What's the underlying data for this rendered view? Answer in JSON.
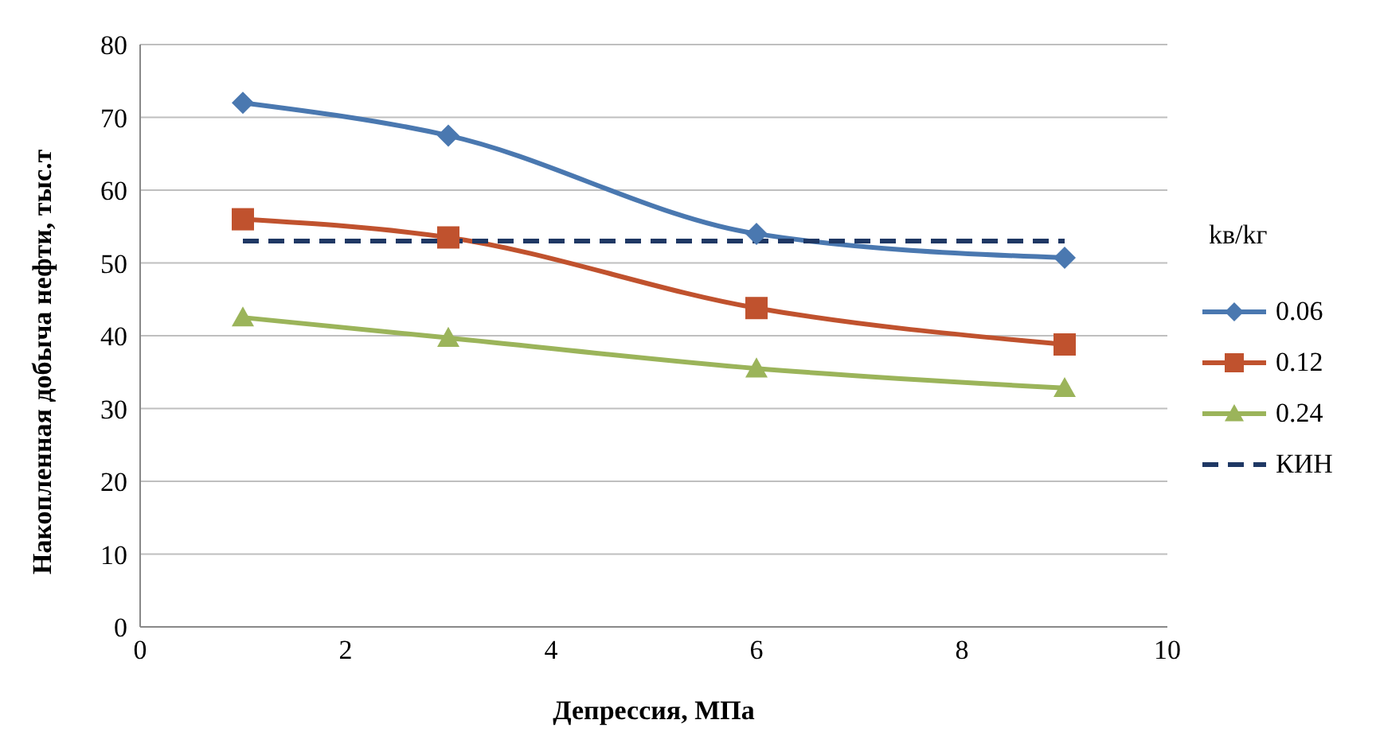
{
  "chart_data": {
    "type": "line",
    "xlabel": "Депрессия, МПа",
    "ylabel": "Накопленная добыча нефти, тыс.т",
    "legend_title": "kв/kг",
    "x": [
      1,
      3,
      6,
      9
    ],
    "series": [
      {
        "name": "0.06",
        "color": "#4a78b0",
        "values": [
          72,
          67.5,
          54,
          50.7
        ],
        "marker": "diamond"
      },
      {
        "name": "0.12",
        "color": "#c0522e",
        "values": [
          56,
          53.5,
          43.8,
          38.8
        ],
        "marker": "square"
      },
      {
        "name": "0.24",
        "color": "#9bb45a",
        "values": [
          42.5,
          39.7,
          35.5,
          32.8
        ],
        "marker": "triangle"
      },
      {
        "name": "КИН",
        "color": "#1f3864",
        "values": [
          53,
          53,
          53,
          53
        ],
        "marker": "none",
        "line_style": "dashed"
      }
    ],
    "xlim": [
      0,
      10
    ],
    "xticks": [
      0,
      2,
      4,
      6,
      8,
      10
    ],
    "ylim": [
      0,
      80
    ],
    "yticks": [
      0,
      10,
      20,
      30,
      40,
      50,
      60,
      70,
      80
    ],
    "grid": "y",
    "legend": "right"
  }
}
